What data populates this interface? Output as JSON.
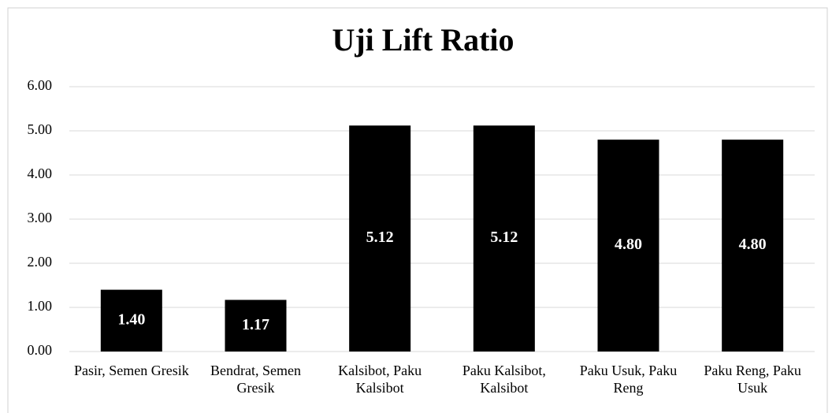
{
  "chart_data": {
    "type": "bar",
    "title": "Uji Lift Ratio",
    "categories": [
      "Pasir, Semen Gresik",
      "Bendrat, Semen Gresik",
      "Kalsibot, Paku Kalsibot",
      "Paku Kalsibot, Kalsibot",
      "Paku Usuk, Paku Reng",
      "Paku Reng, Paku Usuk"
    ],
    "values": [
      1.4,
      1.17,
      5.12,
      5.12,
      4.8,
      4.8
    ],
    "value_labels": [
      "1.40",
      "1.17",
      "5.12",
      "5.12",
      "4.80",
      "4.80"
    ],
    "color": "#000000",
    "ylim": [
      0,
      6
    ],
    "yticks": [
      {
        "value": 0,
        "label": "0.00"
      },
      {
        "value": 1,
        "label": "1.00"
      },
      {
        "value": 2,
        "label": "2.00"
      },
      {
        "value": 3,
        "label": "3.00"
      },
      {
        "value": 4,
        "label": "4.00"
      },
      {
        "value": 5,
        "label": "5.00"
      },
      {
        "value": 6,
        "label": "6.00"
      }
    ],
    "grid": true
  }
}
